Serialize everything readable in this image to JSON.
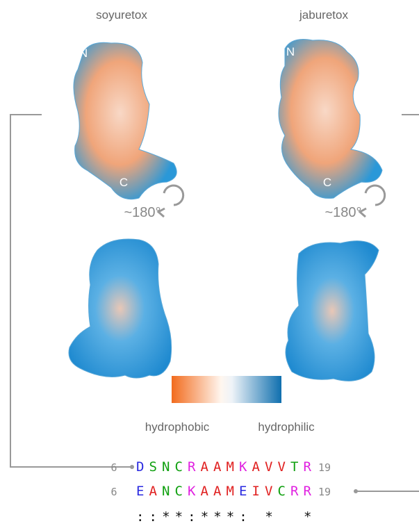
{
  "panels": [
    {
      "title": "soyuretox",
      "n_label": "N",
      "c_label": "C",
      "rotation": "~180°"
    },
    {
      "title": "jaburetox",
      "n_label": "N",
      "c_label": "C",
      "rotation": "~180°"
    }
  ],
  "legend": {
    "low": "hydrophobic",
    "high": "hydrophilic"
  },
  "alignment": {
    "rows": [
      {
        "start": "6",
        "residues": [
          "D",
          "S",
          "N",
          "C",
          "R",
          "A",
          "A",
          "M",
          "K",
          "A",
          "V",
          "V",
          "T",
          "R"
        ],
        "end": "19"
      },
      {
        "start": "6",
        "residues": [
          "E",
          "A",
          "N",
          "C",
          "K",
          "A",
          "A",
          "M",
          "E",
          "I",
          "V",
          "C",
          "R",
          "R"
        ],
        "end": "19"
      }
    ],
    "conservation": "::**:***: *  *"
  }
}
